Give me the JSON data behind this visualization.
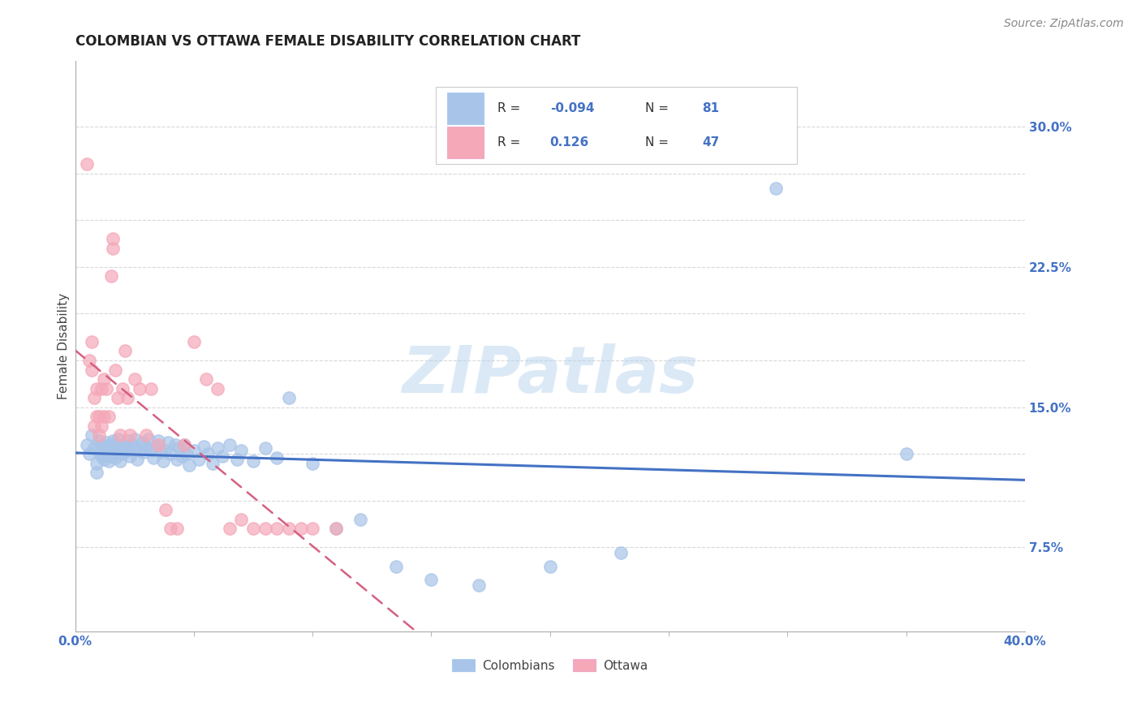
{
  "title": "COLOMBIAN VS OTTAWA FEMALE DISABILITY CORRELATION CHART",
  "source": "Source: ZipAtlas.com",
  "ylabel": "Female Disability",
  "xlim": [
    0.0,
    0.4
  ],
  "ylim": [
    0.03,
    0.335
  ],
  "watermark": "ZIPatlas",
  "colombians_color": "#a8c4e8",
  "ottawa_color": "#f4a8b8",
  "colombians_line_color": "#4472c4",
  "ottawa_line_color": "#d46080",
  "background_color": "#ffffff",
  "grid_color": "#d8d8d8",
  "colombians_x": [
    0.005,
    0.006,
    0.007,
    0.008,
    0.009,
    0.009,
    0.01,
    0.01,
    0.011,
    0.011,
    0.012,
    0.012,
    0.013,
    0.013,
    0.014,
    0.014,
    0.015,
    0.015,
    0.016,
    0.016,
    0.017,
    0.017,
    0.018,
    0.018,
    0.019,
    0.019,
    0.02,
    0.02,
    0.021,
    0.022,
    0.022,
    0.023,
    0.024,
    0.025,
    0.025,
    0.026,
    0.027,
    0.028,
    0.029,
    0.03,
    0.031,
    0.032,
    0.033,
    0.034,
    0.035,
    0.036,
    0.037,
    0.038,
    0.039,
    0.04,
    0.042,
    0.043,
    0.044,
    0.045,
    0.046,
    0.047,
    0.048,
    0.05,
    0.052,
    0.054,
    0.056,
    0.058,
    0.06,
    0.062,
    0.065,
    0.068,
    0.07,
    0.075,
    0.08,
    0.085,
    0.09,
    0.1,
    0.11,
    0.12,
    0.135,
    0.15,
    0.17,
    0.2,
    0.23,
    0.295,
    0.35
  ],
  "colombians_y": [
    0.13,
    0.125,
    0.135,
    0.128,
    0.12,
    0.115,
    0.132,
    0.127,
    0.13,
    0.124,
    0.128,
    0.122,
    0.131,
    0.126,
    0.128,
    0.121,
    0.13,
    0.124,
    0.127,
    0.132,
    0.129,
    0.123,
    0.128,
    0.133,
    0.126,
    0.121,
    0.13,
    0.125,
    0.128,
    0.132,
    0.127,
    0.124,
    0.13,
    0.128,
    0.133,
    0.122,
    0.127,
    0.131,
    0.126,
    0.129,
    0.133,
    0.127,
    0.123,
    0.129,
    0.132,
    0.126,
    0.121,
    0.127,
    0.131,
    0.125,
    0.13,
    0.122,
    0.128,
    0.124,
    0.13,
    0.125,
    0.119,
    0.127,
    0.122,
    0.129,
    0.125,
    0.12,
    0.128,
    0.124,
    0.13,
    0.122,
    0.127,
    0.121,
    0.128,
    0.123,
    0.155,
    0.12,
    0.085,
    0.09,
    0.065,
    0.058,
    0.055,
    0.065,
    0.072,
    0.267,
    0.125
  ],
  "ottawa_x": [
    0.005,
    0.006,
    0.007,
    0.007,
    0.008,
    0.008,
    0.009,
    0.009,
    0.01,
    0.01,
    0.011,
    0.011,
    0.012,
    0.012,
    0.013,
    0.014,
    0.015,
    0.016,
    0.016,
    0.017,
    0.018,
    0.019,
    0.02,
    0.021,
    0.022,
    0.023,
    0.025,
    0.027,
    0.03,
    0.032,
    0.035,
    0.038,
    0.04,
    0.043,
    0.046,
    0.05,
    0.055,
    0.06,
    0.065,
    0.07,
    0.075,
    0.08,
    0.085,
    0.09,
    0.095,
    0.1,
    0.11
  ],
  "ottawa_y": [
    0.28,
    0.175,
    0.185,
    0.17,
    0.14,
    0.155,
    0.16,
    0.145,
    0.145,
    0.135,
    0.16,
    0.14,
    0.165,
    0.145,
    0.16,
    0.145,
    0.22,
    0.24,
    0.235,
    0.17,
    0.155,
    0.135,
    0.16,
    0.18,
    0.155,
    0.135,
    0.165,
    0.16,
    0.135,
    0.16,
    0.13,
    0.095,
    0.085,
    0.085,
    0.13,
    0.185,
    0.165,
    0.16,
    0.085,
    0.09,
    0.085,
    0.085,
    0.085,
    0.085,
    0.085,
    0.085,
    0.085
  ]
}
